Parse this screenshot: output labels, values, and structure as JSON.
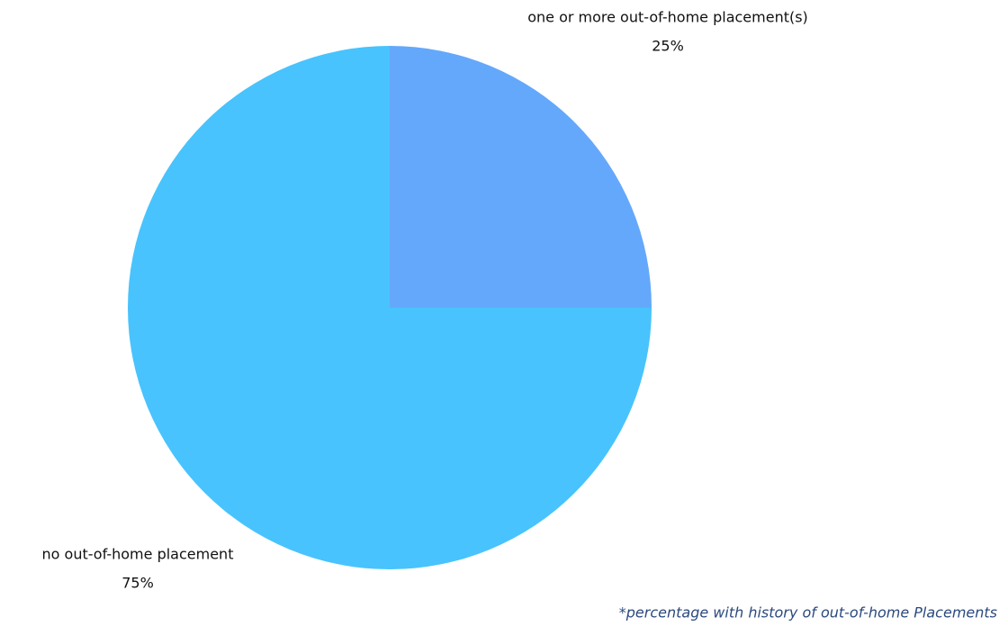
{
  "chart_data": {
    "type": "pie",
    "categories": [
      "one or more out-of-home placement(s)",
      "no out-of-home placement"
    ],
    "values": [
      25,
      75
    ],
    "value_labels": [
      "25%",
      "75%"
    ],
    "colors": [
      "#64a8fb",
      "#48c3fd"
    ],
    "note": "*percentage with history of out-of-home Placements"
  }
}
